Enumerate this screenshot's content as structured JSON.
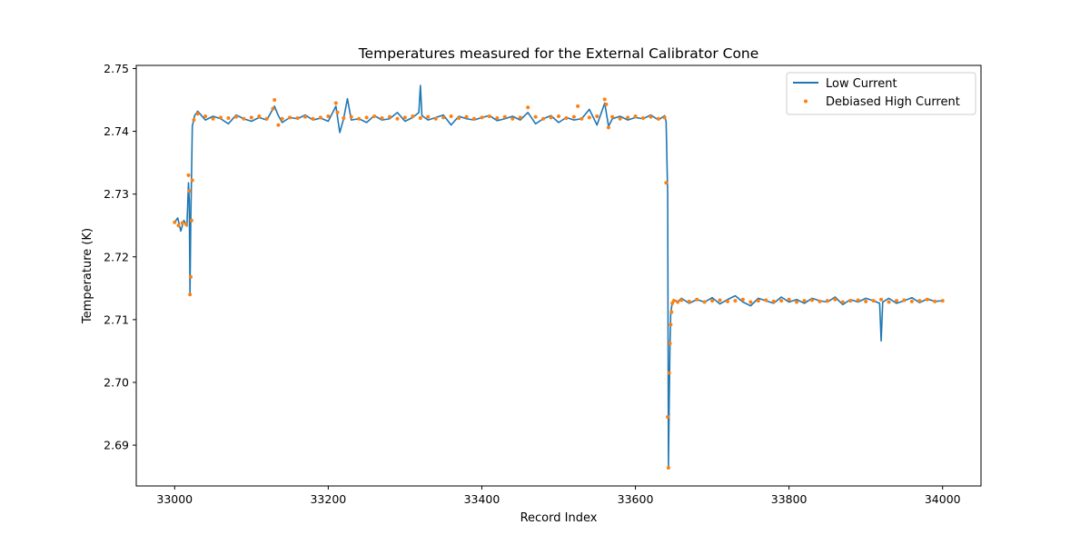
{
  "chart_data": {
    "type": "line",
    "title": "Temperatures measured for the External Calibrator Cone",
    "xlabel": "Record Index",
    "ylabel": "Temperature (K)",
    "xlim": [
      32950,
      34050
    ],
    "ylim": [
      2.6835,
      2.7505
    ],
    "xticks": [
      33000,
      33200,
      33400,
      33600,
      33800,
      34000
    ],
    "yticks": [
      2.69,
      2.7,
      2.71,
      2.72,
      2.73,
      2.74,
      2.75
    ],
    "xtick_labels": [
      "33000",
      "33200",
      "33400",
      "33600",
      "33800",
      "34000"
    ],
    "ytick_labels": [
      "2.69",
      "2.70",
      "2.71",
      "2.72",
      "2.73",
      "2.74",
      "2.75"
    ],
    "grid": false,
    "legend_position": "top-right",
    "colors": {
      "low_current": "#1f77b4",
      "debiased_high_current": "#ff7f0e",
      "axes": "#000000"
    },
    "series": [
      {
        "name": "Low Current",
        "style": "line",
        "x": [
          33000,
          33004,
          33008,
          33012,
          33016,
          33018,
          33019,
          33020,
          33021,
          33022,
          33023,
          33026,
          33030,
          33040,
          33050,
          33060,
          33070,
          33080,
          33090,
          33100,
          33110,
          33120,
          33130,
          33135,
          33140,
          33150,
          33160,
          33170,
          33180,
          33190,
          33200,
          33210,
          33215,
          33220,
          33225,
          33230,
          33240,
          33250,
          33260,
          33270,
          33280,
          33290,
          33300,
          33310,
          33318,
          33320,
          33322,
          33330,
          33340,
          33350,
          33360,
          33370,
          33380,
          33390,
          33400,
          33410,
          33420,
          33430,
          33440,
          33450,
          33460,
          33470,
          33480,
          33490,
          33500,
          33510,
          33520,
          33530,
          33540,
          33550,
          33560,
          33565,
          33570,
          33580,
          33590,
          33600,
          33610,
          33620,
          33630,
          33638,
          33640,
          33642,
          33643,
          33644,
          33645,
          33646,
          33648,
          33650,
          33655,
          33660,
          33670,
          33680,
          33690,
          33700,
          33710,
          33720,
          33730,
          33740,
          33750,
          33760,
          33770,
          33780,
          33790,
          33800,
          33810,
          33820,
          33830,
          33840,
          33850,
          33860,
          33870,
          33880,
          33890,
          33900,
          33910,
          33918,
          33920,
          33922,
          33930,
          33940,
          33950,
          33960,
          33970,
          33980,
          33990,
          34000
        ],
        "y": [
          2.7255,
          2.7262,
          2.7241,
          2.7258,
          2.7249,
          2.7318,
          2.729,
          2.7142,
          2.726,
          2.733,
          2.7408,
          2.7425,
          2.7432,
          2.7418,
          2.7424,
          2.742,
          2.7412,
          2.7426,
          2.742,
          2.7416,
          2.7422,
          2.7418,
          2.744,
          2.7425,
          2.7414,
          2.7422,
          2.742,
          2.7426,
          2.7418,
          2.7421,
          2.7416,
          2.744,
          2.7398,
          2.742,
          2.7452,
          2.7418,
          2.742,
          2.7414,
          2.7425,
          2.7418,
          2.742,
          2.743,
          2.7416,
          2.7422,
          2.743,
          2.7473,
          2.7425,
          2.7418,
          2.7422,
          2.7426,
          2.741,
          2.7424,
          2.742,
          2.7418,
          2.7422,
          2.7425,
          2.7417,
          2.742,
          2.7424,
          2.7418,
          2.743,
          2.7412,
          2.742,
          2.7425,
          2.7414,
          2.7422,
          2.7418,
          2.742,
          2.7435,
          2.741,
          2.7445,
          2.7408,
          2.742,
          2.7424,
          2.7418,
          2.7422,
          2.742,
          2.7426,
          2.7418,
          2.7425,
          2.7415,
          2.73,
          2.6866,
          2.697,
          2.706,
          2.711,
          2.7128,
          2.7132,
          2.7128,
          2.7134,
          2.7126,
          2.7132,
          2.7128,
          2.7135,
          2.7125,
          2.7132,
          2.7138,
          2.7128,
          2.7122,
          2.7134,
          2.713,
          2.7126,
          2.7136,
          2.7128,
          2.7132,
          2.7126,
          2.7134,
          2.713,
          2.7128,
          2.7136,
          2.7124,
          2.7132,
          2.7128,
          2.7134,
          2.713,
          2.7126,
          2.7066,
          2.7128,
          2.7134,
          2.7126,
          2.713,
          2.7135,
          2.7127,
          2.7133,
          2.7129,
          2.713
        ]
      },
      {
        "name": "Debiased High Current",
        "style": "points",
        "x": [
          33000,
          33005,
          33010,
          33015,
          33018,
          33019,
          33020,
          33021,
          33022,
          33023,
          33025,
          33030,
          33040,
          33050,
          33060,
          33070,
          33080,
          33090,
          33100,
          33110,
          33120,
          33128,
          33130,
          33135,
          33140,
          33150,
          33160,
          33170,
          33180,
          33190,
          33200,
          33210,
          33212,
          33220,
          33230,
          33240,
          33250,
          33260,
          33270,
          33280,
          33290,
          33300,
          33310,
          33320,
          33330,
          33340,
          33350,
          33360,
          33370,
          33380,
          33390,
          33400,
          33410,
          33420,
          33430,
          33440,
          33450,
          33460,
          33470,
          33480,
          33490,
          33500,
          33510,
          33520,
          33525,
          33530,
          33540,
          33550,
          33560,
          33562,
          33565,
          33570,
          33580,
          33590,
          33600,
          33610,
          33620,
          33630,
          33638,
          33640,
          33642,
          33643,
          33644,
          33645,
          33646,
          33647,
          33648,
          33650,
          33655,
          33660,
          33670,
          33680,
          33690,
          33700,
          33710,
          33720,
          33730,
          33740,
          33750,
          33760,
          33770,
          33780,
          33790,
          33800,
          33810,
          33820,
          33830,
          33840,
          33850,
          33860,
          33870,
          33880,
          33890,
          33900,
          33910,
          33920,
          33930,
          33940,
          33950,
          33960,
          33970,
          33980,
          33990,
          34000
        ],
        "y": [
          2.7255,
          2.725,
          2.7254,
          2.7252,
          2.733,
          2.7305,
          2.714,
          2.7168,
          2.7258,
          2.7322,
          2.7418,
          2.7428,
          2.7424,
          2.742,
          2.7422,
          2.7421,
          2.7423,
          2.742,
          2.7422,
          2.7424,
          2.742,
          2.7436,
          2.745,
          2.741,
          2.742,
          2.7422,
          2.7421,
          2.7423,
          2.742,
          2.7422,
          2.7424,
          2.7445,
          2.743,
          2.7421,
          2.7423,
          2.742,
          2.7422,
          2.7424,
          2.7421,
          2.7423,
          2.742,
          2.7422,
          2.7424,
          2.7421,
          2.7423,
          2.742,
          2.7422,
          2.7424,
          2.7421,
          2.7423,
          2.742,
          2.7422,
          2.7424,
          2.7421,
          2.7423,
          2.742,
          2.7422,
          2.7438,
          2.7423,
          2.742,
          2.7422,
          2.7424,
          2.7421,
          2.7423,
          2.744,
          2.742,
          2.7422,
          2.7424,
          2.7451,
          2.7443,
          2.7406,
          2.7423,
          2.742,
          2.7422,
          2.7424,
          2.7421,
          2.7423,
          2.742,
          2.7422,
          2.7318,
          2.6945,
          2.6864,
          2.7015,
          2.7062,
          2.7092,
          2.7112,
          2.7126,
          2.713,
          2.7128,
          2.7131,
          2.7129,
          2.7132,
          2.7128,
          2.713,
          2.7131,
          2.7129,
          2.713,
          2.7132,
          2.7128,
          2.713,
          2.7131,
          2.7129,
          2.713,
          2.7132,
          2.7128,
          2.713,
          2.7131,
          2.7129,
          2.713,
          2.7132,
          2.7128,
          2.713,
          2.7131,
          2.7129,
          2.713,
          2.7132,
          2.7128,
          2.713,
          2.7131,
          2.7129,
          2.713,
          2.7132,
          2.7129,
          2.713
        ]
      }
    ]
  }
}
